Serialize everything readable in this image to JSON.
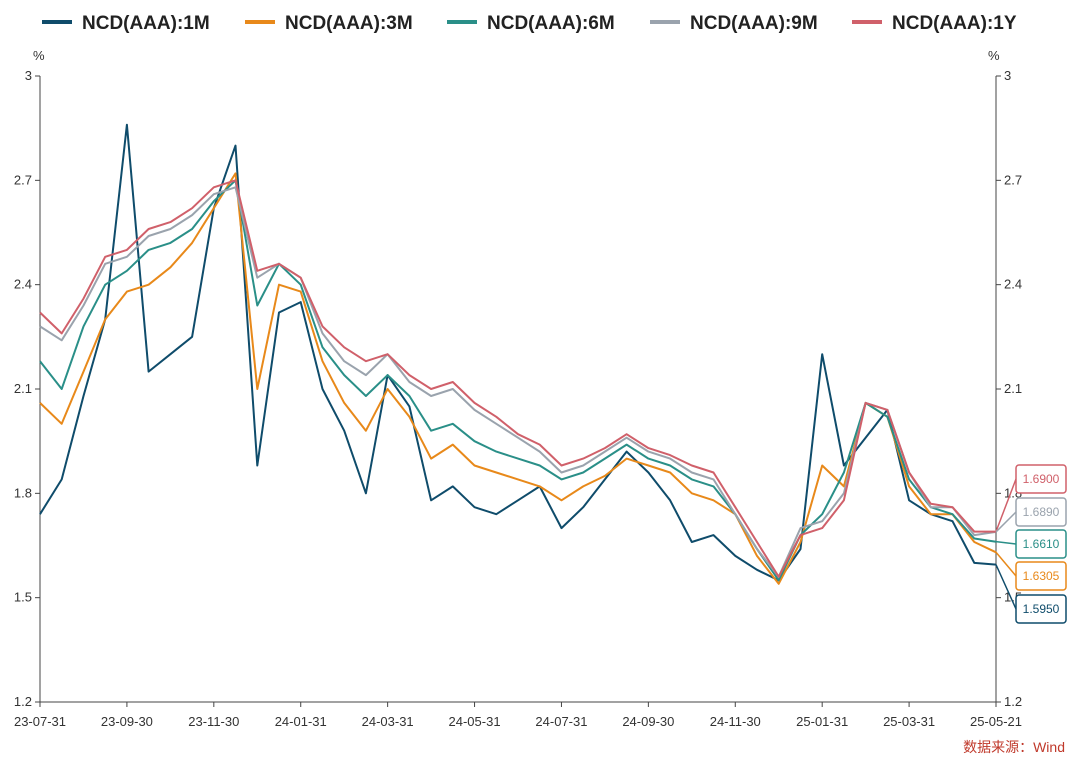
{
  "chart_data": {
    "type": "line",
    "title": "",
    "xlabel": "",
    "ylabel_left": "%",
    "ylabel_right": "%",
    "ylim": [
      1.2,
      3.0
    ],
    "yticks": [
      1.2,
      1.5,
      1.8,
      2.1,
      2.4,
      2.7,
      3
    ],
    "ytick_labels": [
      "1.2",
      "1.5",
      "1.8",
      "2.1",
      "2.4",
      "2.7",
      "3"
    ],
    "x_tick_labels": [
      "23-07-31",
      "23-09-30",
      "23-11-30",
      "24-01-31",
      "24-03-31",
      "24-05-31",
      "24-07-31",
      "24-09-30",
      "24-11-30",
      "25-01-31",
      "25-03-31",
      "25-05-21"
    ],
    "x": [
      "23-07-31",
      "23-08-15",
      "23-09-01",
      "23-09-15",
      "23-09-30",
      "23-10-15",
      "23-10-31",
      "23-11-15",
      "23-11-30",
      "23-12-15",
      "23-12-31",
      "24-01-15",
      "24-01-31",
      "24-02-15",
      "24-02-29",
      "24-03-15",
      "24-03-31",
      "24-04-15",
      "24-04-30",
      "24-05-15",
      "24-05-31",
      "24-06-15",
      "24-06-30",
      "24-07-15",
      "24-07-31",
      "24-08-15",
      "24-08-31",
      "24-09-15",
      "24-09-30",
      "24-10-15",
      "24-10-31",
      "24-11-15",
      "24-11-30",
      "24-12-15",
      "24-12-31",
      "25-01-15",
      "25-01-31",
      "25-02-15",
      "25-02-28",
      "25-03-15",
      "25-03-31",
      "25-04-15",
      "25-04-30",
      "25-05-15",
      "25-05-21"
    ],
    "grid": false,
    "legend_position": "top",
    "series": [
      {
        "name": "NCD(AAA):1M",
        "color": "#0f4c6b",
        "values": [
          1.74,
          1.84,
          2.08,
          2.3,
          2.86,
          2.15,
          2.2,
          2.25,
          2.62,
          2.8,
          1.88,
          2.32,
          2.35,
          2.1,
          1.98,
          1.8,
          2.14,
          2.05,
          1.78,
          1.82,
          1.76,
          1.74,
          1.78,
          1.82,
          1.7,
          1.76,
          1.84,
          1.92,
          1.86,
          1.78,
          1.66,
          1.68,
          1.62,
          1.58,
          1.55,
          1.64,
          2.2,
          1.88,
          1.96,
          2.04,
          1.78,
          1.74,
          1.72,
          1.6,
          1.595
        ]
      },
      {
        "name": "NCD(AAA):3M",
        "color": "#e8891a",
        "values": [
          2.06,
          2.0,
          2.15,
          2.3,
          2.38,
          2.4,
          2.45,
          2.52,
          2.62,
          2.72,
          2.1,
          2.4,
          2.38,
          2.18,
          2.06,
          1.98,
          2.1,
          2.02,
          1.9,
          1.94,
          1.88,
          1.86,
          1.84,
          1.82,
          1.78,
          1.82,
          1.85,
          1.9,
          1.88,
          1.86,
          1.8,
          1.78,
          1.74,
          1.62,
          1.54,
          1.66,
          1.88,
          1.82,
          2.06,
          2.02,
          1.82,
          1.74,
          1.74,
          1.66,
          1.6305
        ]
      },
      {
        "name": "NCD(AAA):6M",
        "color": "#2a8f88",
        "values": [
          2.18,
          2.1,
          2.28,
          2.4,
          2.44,
          2.5,
          2.52,
          2.56,
          2.64,
          2.7,
          2.34,
          2.46,
          2.4,
          2.22,
          2.14,
          2.08,
          2.14,
          2.08,
          1.98,
          2.0,
          1.95,
          1.92,
          1.9,
          1.88,
          1.84,
          1.86,
          1.9,
          1.94,
          1.9,
          1.88,
          1.84,
          1.82,
          1.74,
          1.64,
          1.55,
          1.68,
          1.74,
          1.86,
          2.06,
          2.02,
          1.84,
          1.76,
          1.74,
          1.67,
          1.661
        ]
      },
      {
        "name": "NCD(AAA):9M",
        "color": "#9aa3ad",
        "values": [
          2.28,
          2.24,
          2.34,
          2.46,
          2.48,
          2.54,
          2.56,
          2.6,
          2.66,
          2.68,
          2.42,
          2.46,
          2.42,
          2.26,
          2.18,
          2.14,
          2.2,
          2.12,
          2.08,
          2.1,
          2.04,
          2.0,
          1.96,
          1.92,
          1.86,
          1.88,
          1.92,
          1.96,
          1.92,
          1.9,
          1.86,
          1.84,
          1.74,
          1.64,
          1.56,
          1.7,
          1.72,
          1.8,
          2.06,
          2.04,
          1.86,
          1.76,
          1.76,
          1.68,
          1.689
        ]
      },
      {
        "name": "NCD(AAA):1Y",
        "color": "#d0606a",
        "values": [
          2.32,
          2.26,
          2.36,
          2.48,
          2.5,
          2.56,
          2.58,
          2.62,
          2.68,
          2.7,
          2.44,
          2.46,
          2.42,
          2.28,
          2.22,
          2.18,
          2.2,
          2.14,
          2.1,
          2.12,
          2.06,
          2.02,
          1.97,
          1.94,
          1.88,
          1.9,
          1.93,
          1.97,
          1.93,
          1.91,
          1.88,
          1.86,
          1.76,
          1.66,
          1.56,
          1.68,
          1.7,
          1.78,
          2.06,
          2.04,
          1.86,
          1.77,
          1.76,
          1.69,
          1.69
        ]
      }
    ],
    "end_labels": [
      {
        "text": "1.6900",
        "color": "#d0606a"
      },
      {
        "text": "1.6890",
        "color": "#9aa3ad"
      },
      {
        "text": "1.6610",
        "color": "#2a8f88"
      },
      {
        "text": "1.6305",
        "color": "#e8891a"
      },
      {
        "text": "1.5950",
        "color": "#0f4c6b"
      }
    ],
    "source": "数据来源：Wind"
  }
}
